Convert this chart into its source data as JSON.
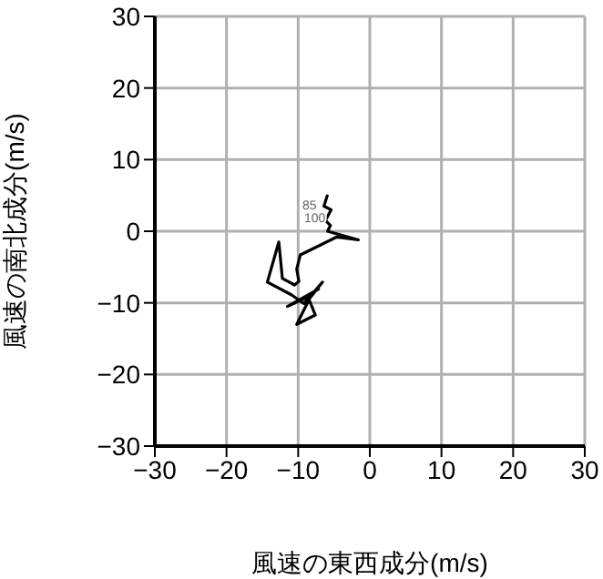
{
  "chart_data": {
    "type": "line",
    "xlabel": "風速の東西成分(m/s)",
    "ylabel": "風速の南北成分(m/s)",
    "xlim": [
      -30,
      30
    ],
    "xticks": [
      -30,
      -20,
      -10,
      0,
      10,
      20,
      30
    ],
    "ylim": [
      -30,
      30
    ],
    "yticks": [
      -30,
      -20,
      -10,
      0,
      10,
      20,
      30
    ],
    "grid": true,
    "marker": "none",
    "series": [
      {
        "color": "#000000",
        "x": [
          -5.9,
          -6.4,
          -5.4,
          -6.2,
          -5.5,
          -5.9,
          -1.6,
          -4.6,
          -9.7,
          -10.2,
          -9.9,
          -10.5,
          -12.2,
          -12.7,
          -14.3,
          -10.9,
          -9.2,
          -6.6,
          -8.5,
          -7.6,
          -10.2,
          -8.2,
          -11.5,
          -7.0
        ],
        "values": [
          5.1,
          3.5,
          3.0,
          1.5,
          0.8,
          0,
          -1.2,
          -0.8,
          -3.3,
          -5.3,
          -7.0,
          -7.5,
          -6.6,
          -1.5,
          -7.1,
          -8.9,
          -10.1,
          -7.1,
          -9.5,
          -11.7,
          -13.0,
          -9.0,
          -10.5,
          -8.0
        ]
      }
    ],
    "annotations": [
      "85",
      "100"
    ]
  }
}
